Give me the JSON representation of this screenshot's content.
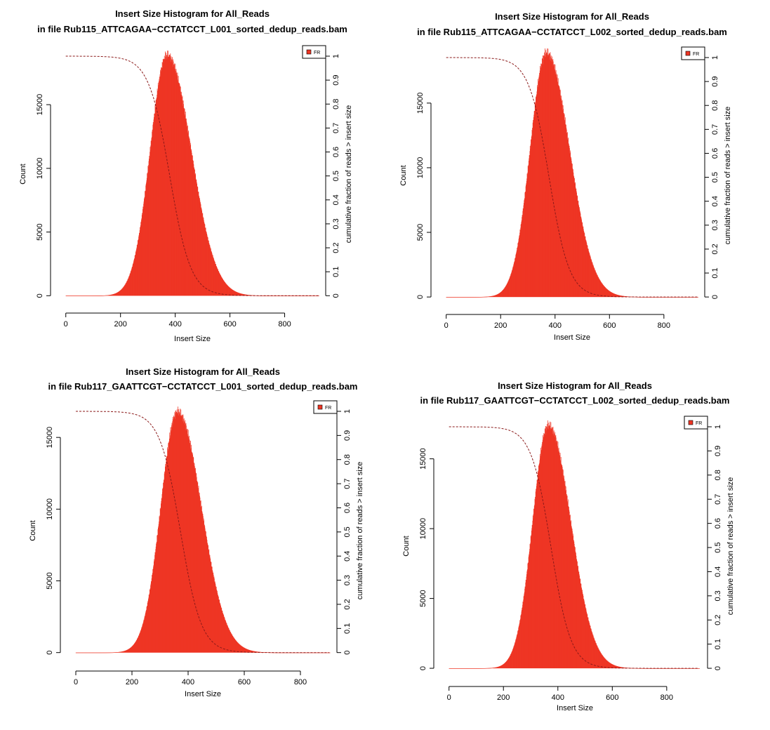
{
  "colors": {
    "bar": "#ee3524",
    "cumulative": "#8b1a1a",
    "axis": "#000000"
  },
  "chart_data": [
    {
      "type": "bar",
      "title": "Insert Size Histogram for All_Reads",
      "subtitle": "in file Rub115_ATTCAGAA−CCTATCCT_L001_sorted_dedup_reads.bam",
      "xlabel": "Insert Size",
      "ylabel": "Count",
      "y2label": "cumulative fraction of reads > insert size",
      "xlim": [
        -25,
        950
      ],
      "ylim": [
        -700,
        19800
      ],
      "x_ticks": [
        0,
        200,
        400,
        600,
        800
      ],
      "y_ticks": [
        0,
        5000,
        10000,
        15000
      ],
      "y2_ticks": [
        0,
        0.1,
        0.2,
        0.3,
        0.4,
        0.5,
        0.6,
        0.7,
        0.8,
        0.9,
        1
      ],
      "legend": {
        "position": "top-right",
        "entries": [
          "FR"
        ]
      },
      "grid": false,
      "histogram": {
        "mode": 370,
        "peak": 18900,
        "sigma_left": 62,
        "sigma_right": 88,
        "x_max": 925
      },
      "cumulative": {
        "median": 380,
        "spread": 65
      }
    },
    {
      "type": "bar",
      "title": "Insert Size Histogram for All_Reads",
      "subtitle": "in file Rub115_ATTCAGAA−CCTATCCT_L002_sorted_dedup_reads.bam",
      "xlabel": "Insert Size",
      "ylabel": "Count",
      "y2label": "cumulative fraction of reads > insert size",
      "xlim": [
        -25,
        950
      ],
      "ylim": [
        -700,
        19500
      ],
      "x_ticks": [
        0,
        200,
        400,
        600,
        800
      ],
      "y_ticks": [
        0,
        5000,
        10000,
        15000
      ],
      "y2_ticks": [
        0,
        0.1,
        0.2,
        0.3,
        0.4,
        0.5,
        0.6,
        0.7,
        0.8,
        0.9,
        1
      ],
      "legend": {
        "position": "top-right",
        "entries": [
          "FR"
        ]
      },
      "grid": false,
      "histogram": {
        "mode": 368,
        "peak": 18900,
        "sigma_left": 60,
        "sigma_right": 85,
        "x_max": 925
      },
      "cumulative": {
        "median": 378,
        "spread": 63
      }
    },
    {
      "type": "bar",
      "title": "Insert Size Histogram for All_Reads",
      "subtitle": "in file Rub117_GAATTCGT−CCTATCCT_L001_sorted_dedup_reads.bam",
      "xlabel": "Insert Size",
      "ylabel": "Count",
      "y2label": "cumulative fraction of reads > insert size",
      "xlim": [
        -25,
        930
      ],
      "ylim": [
        -700,
        17700
      ],
      "x_ticks": [
        0,
        200,
        400,
        600,
        800
      ],
      "y_ticks": [
        0,
        5000,
        10000,
        15000
      ],
      "y2_ticks": [
        0,
        0.1,
        0.2,
        0.3,
        0.4,
        0.5,
        0.6,
        0.7,
        0.8,
        0.9,
        1
      ],
      "legend": {
        "position": "top-right",
        "entries": [
          "FR"
        ]
      },
      "grid": false,
      "histogram": {
        "mode": 362,
        "peak": 16800,
        "sigma_left": 60,
        "sigma_right": 85,
        "x_max": 905
      },
      "cumulative": {
        "median": 373,
        "spread": 63
      }
    },
    {
      "type": "bar",
      "title": "Insert Size Histogram for All_Reads",
      "subtitle": "in file Rub117_GAATTCGT−CCTATCCT_L002_sorted_dedup_reads.bam",
      "xlabel": "Insert Size",
      "ylabel": "Count",
      "y2label": "cumulative fraction of reads > insert size",
      "xlim": [
        -25,
        950
      ],
      "ylim": [
        -700,
        18200
      ],
      "x_ticks": [
        0,
        200,
        400,
        600,
        800
      ],
      "y_ticks": [
        0,
        5000,
        10000,
        15000
      ],
      "y2_ticks": [
        0,
        0.1,
        0.2,
        0.3,
        0.4,
        0.5,
        0.6,
        0.7,
        0.8,
        0.9,
        1
      ],
      "legend": {
        "position": "top-right",
        "entries": [
          "FR"
        ]
      },
      "grid": false,
      "histogram": {
        "mode": 365,
        "peak": 17400,
        "sigma_left": 58,
        "sigma_right": 82,
        "x_max": 920
      },
      "cumulative": {
        "median": 375,
        "spread": 62
      }
    }
  ]
}
